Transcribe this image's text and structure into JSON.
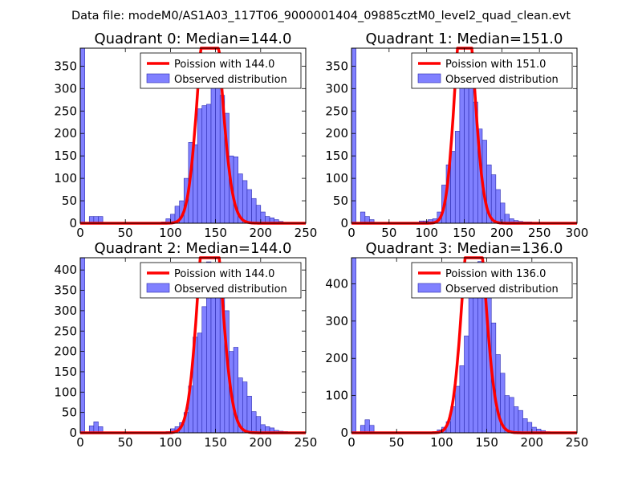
{
  "figure": {
    "suptitle": "Data file: modeM0/AS1A03_117T06_9000001404_09885cztM0_level2_quad_clean.evt"
  },
  "colors": {
    "bar_fill": "#8080ff",
    "bar_edge": "#2a2ab0",
    "poisson_line": "#ff0000"
  },
  "chart_data": [
    {
      "type": "bar",
      "title": "Quadrant 0: Median=144.0",
      "median": 144.0,
      "xlim": [
        0,
        250
      ],
      "ylim": [
        0,
        390
      ],
      "xticks": [
        0,
        50,
        100,
        150,
        200,
        250
      ],
      "yticks": [
        0,
        50,
        100,
        150,
        200,
        250,
        300,
        350
      ],
      "bin_width": 5,
      "bins": [
        [
          0,
          390
        ],
        [
          10,
          15
        ],
        [
          15,
          15
        ],
        [
          20,
          15
        ],
        [
          90,
          3
        ],
        [
          95,
          10
        ],
        [
          100,
          20
        ],
        [
          105,
          38
        ],
        [
          110,
          50
        ],
        [
          115,
          100
        ],
        [
          120,
          180
        ],
        [
          125,
          175
        ],
        [
          130,
          255
        ],
        [
          135,
          262
        ],
        [
          140,
          265
        ],
        [
          145,
          335
        ],
        [
          150,
          335
        ],
        [
          155,
          285
        ],
        [
          160,
          245
        ],
        [
          165,
          150
        ],
        [
          170,
          148
        ],
        [
          175,
          110
        ],
        [
          180,
          95
        ],
        [
          185,
          75
        ],
        [
          190,
          55
        ],
        [
          195,
          40
        ],
        [
          200,
          25
        ],
        [
          205,
          15
        ],
        [
          210,
          12
        ],
        [
          215,
          8
        ],
        [
          220,
          4
        ]
      ],
      "legend": [
        "Poission with 144.0",
        "Observed distribution"
      ]
    },
    {
      "type": "bar",
      "title": "Quadrant 1: Median=151.0",
      "median": 151.0,
      "xlim": [
        0,
        300
      ],
      "ylim": [
        0,
        390
      ],
      "xticks": [
        0,
        50,
        100,
        150,
        200,
        250,
        300
      ],
      "yticks": [
        0,
        50,
        100,
        150,
        200,
        250,
        300,
        350
      ],
      "bin_width": 6,
      "bins": [
        [
          0,
          390
        ],
        [
          12,
          25
        ],
        [
          18,
          15
        ],
        [
          24,
          8
        ],
        [
          90,
          5
        ],
        [
          96,
          5
        ],
        [
          102,
          8
        ],
        [
          108,
          10
        ],
        [
          114,
          25
        ],
        [
          120,
          85
        ],
        [
          126,
          130
        ],
        [
          132,
          160
        ],
        [
          138,
          205
        ],
        [
          144,
          305
        ],
        [
          150,
          330
        ],
        [
          156,
          350
        ],
        [
          162,
          270
        ],
        [
          168,
          210
        ],
        [
          174,
          185
        ],
        [
          180,
          130
        ],
        [
          186,
          108
        ],
        [
          192,
          75
        ],
        [
          198,
          45
        ],
        [
          204,
          20
        ],
        [
          210,
          10
        ],
        [
          216,
          6
        ],
        [
          222,
          4
        ],
        [
          228,
          3
        ],
        [
          234,
          3
        ],
        [
          240,
          2
        ]
      ],
      "legend": [
        "Poission with 151.0",
        "Observed distribution"
      ]
    },
    {
      "type": "bar",
      "title": "Quadrant 2: Median=144.0",
      "median": 144.0,
      "xlim": [
        0,
        250
      ],
      "ylim": [
        0,
        430
      ],
      "xticks": [
        0,
        50,
        100,
        150,
        200,
        250
      ],
      "yticks": [
        0,
        50,
        100,
        150,
        200,
        250,
        300,
        350,
        400
      ],
      "bin_width": 5,
      "bins": [
        [
          0,
          430
        ],
        [
          10,
          17
        ],
        [
          15,
          27
        ],
        [
          20,
          15
        ],
        [
          95,
          3
        ],
        [
          100,
          10
        ],
        [
          105,
          15
        ],
        [
          110,
          25
        ],
        [
          115,
          50
        ],
        [
          120,
          115
        ],
        [
          125,
          235
        ],
        [
          130,
          245
        ],
        [
          135,
          310
        ],
        [
          140,
          420
        ],
        [
          145,
          400
        ],
        [
          150,
          380
        ],
        [
          155,
          365
        ],
        [
          160,
          300
        ],
        [
          165,
          200
        ],
        [
          170,
          210
        ],
        [
          175,
          135
        ],
        [
          180,
          125
        ],
        [
          185,
          90
        ],
        [
          190,
          52
        ],
        [
          195,
          40
        ],
        [
          200,
          20
        ],
        [
          205,
          15
        ],
        [
          210,
          12
        ],
        [
          215,
          6
        ],
        [
          220,
          4
        ],
        [
          225,
          3
        ],
        [
          230,
          2
        ]
      ],
      "legend": [
        "Poission with 144.0",
        "Observed distribution"
      ]
    },
    {
      "type": "bar",
      "title": "Quadrant 3: Median=136.0",
      "median": 136.0,
      "xlim": [
        0,
        250
      ],
      "ylim": [
        0,
        470
      ],
      "xticks": [
        0,
        50,
        100,
        150,
        200,
        250
      ],
      "yticks": [
        0,
        100,
        200,
        300,
        400
      ],
      "bin_width": 5,
      "bins": [
        [
          0,
          470
        ],
        [
          10,
          20
        ],
        [
          15,
          35
        ],
        [
          20,
          20
        ],
        [
          90,
          3
        ],
        [
          95,
          8
        ],
        [
          100,
          15
        ],
        [
          105,
          30
        ],
        [
          110,
          70
        ],
        [
          115,
          125
        ],
        [
          120,
          180
        ],
        [
          125,
          260
        ],
        [
          130,
          375
        ],
        [
          135,
          445
        ],
        [
          140,
          460
        ],
        [
          145,
          445
        ],
        [
          150,
          365
        ],
        [
          155,
          295
        ],
        [
          160,
          210
        ],
        [
          165,
          160
        ],
        [
          170,
          100
        ],
        [
          175,
          95
        ],
        [
          180,
          70
        ],
        [
          185,
          60
        ],
        [
          190,
          38
        ],
        [
          195,
          28
        ],
        [
          200,
          15
        ],
        [
          205,
          10
        ],
        [
          210,
          6
        ],
        [
          215,
          3
        ]
      ],
      "legend": [
        "Poission with 136.0",
        "Observed distribution"
      ]
    }
  ]
}
